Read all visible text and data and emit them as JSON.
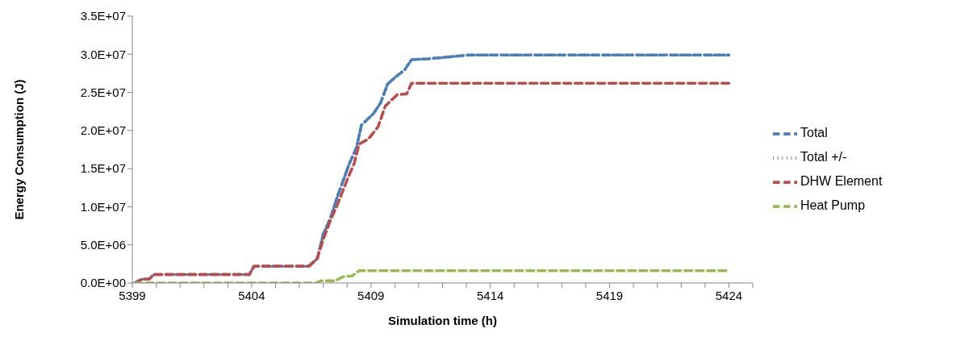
{
  "chart_data": {
    "type": "line",
    "xlabel": "Simulation time (h)",
    "ylabel": "Energy Consumption (J)",
    "xlim": [
      5399,
      5425
    ],
    "xticks": [
      5399,
      {
        "value": 5400,
        "label": null
      },
      {
        "value": 5401,
        "label": null
      },
      {
        "value": 5402,
        "label": null
      },
      {
        "value": 5403,
        "label": null
      },
      5404,
      {
        "value": 5405,
        "label": null
      },
      {
        "value": 5406,
        "label": null
      },
      {
        "value": 5407,
        "label": null
      },
      {
        "value": 5408,
        "label": null
      },
      5409,
      {
        "value": 5410,
        "label": null
      },
      {
        "value": 5411,
        "label": null
      },
      {
        "value": 5412,
        "label": null
      },
      {
        "value": 5413,
        "label": null
      },
      5414,
      {
        "value": 5415,
        "label": null
      },
      {
        "value": 5416,
        "label": null
      },
      {
        "value": 5417,
        "label": null
      },
      {
        "value": 5418,
        "label": null
      },
      5419,
      {
        "value": 5420,
        "label": null
      },
      {
        "value": 5421,
        "label": null
      },
      {
        "value": 5422,
        "label": null
      },
      {
        "value": 5423,
        "label": null
      },
      5424,
      {
        "value": 5425,
        "label": null
      }
    ],
    "ylim": [
      0,
      35000000
    ],
    "yticks": [
      {
        "value": 0,
        "label": "0.0E+00"
      },
      {
        "value": 5000000,
        "label": "5.0E+06"
      },
      {
        "value": 10000000,
        "label": "1.0E+07"
      },
      {
        "value": 15000000,
        "label": "1.5E+07"
      },
      {
        "value": 20000000,
        "label": "2.0E+07"
      },
      {
        "value": 25000000,
        "label": "2.5E+07"
      },
      {
        "value": 30000000,
        "label": "3.0E+07"
      },
      {
        "value": 35000000,
        "label": "3.5E+07"
      }
    ],
    "grid": false,
    "legend": "right",
    "series": [
      {
        "name": "Total",
        "color": "#4a7ebb",
        "line_style": "dashed",
        "x": [
          5399.1,
          5399.4,
          5399.7,
          5399.9,
          5403.9,
          5404.1,
          5406.4,
          5406.75,
          5407.0,
          5407.3,
          5407.6,
          5408.1,
          5408.4,
          5408.6,
          5409.1,
          5409.4,
          5409.7,
          5410.1,
          5410.4,
          5410.7,
          5411.4,
          5413.1,
          5424
        ],
        "values": [
          0,
          500000,
          500000,
          1100000,
          1100000,
          2200000,
          2200000,
          3200000,
          6400000,
          8500000,
          11400000,
          15700000,
          17800000,
          20700000,
          22200000,
          23600000,
          26100000,
          27200000,
          27900000,
          29300000,
          29400000,
          29900000,
          29900000
        ]
      },
      {
        "name": "Total +/-",
        "color": "#4a7ebb",
        "line_style": "dotted",
        "x": [
          5399.1,
          5399.4,
          5399.7,
          5399.9,
          5403.9,
          5404.1,
          5406.4,
          5406.75,
          5407.0,
          5407.3,
          5407.6,
          5408.1,
          5408.4,
          5408.6,
          5409.1,
          5409.4,
          5409.7,
          5410.1,
          5410.4,
          5410.7,
          5411.4,
          5413.1,
          5424
        ],
        "values": [
          0,
          500000,
          500000,
          1100000,
          1100000,
          2200000,
          2200000,
          3200000,
          6400000,
          8500000,
          11400000,
          15700000,
          17800000,
          20700000,
          22200000,
          23600000,
          26100000,
          27200000,
          27900000,
          29300000,
          29400000,
          29900000,
          29900000
        ]
      },
      {
        "name": "DHW Element",
        "color": "#be4b48",
        "line_style": "dashed",
        "x": [
          5399.1,
          5399.4,
          5399.7,
          5399.9,
          5403.9,
          5404.1,
          5406.4,
          5406.75,
          5407.0,
          5407.3,
          5407.6,
          5408.0,
          5408.3,
          5408.5,
          5408.9,
          5409.3,
          5409.6,
          5410.1,
          5410.5,
          5410.7,
          5424
        ],
        "values": [
          0,
          500000,
          500000,
          1100000,
          1100000,
          2200000,
          2200000,
          3200000,
          5700000,
          8200000,
          10300000,
          13500000,
          15700000,
          18200000,
          18900000,
          20500000,
          23200000,
          24700000,
          24800000,
          26200000,
          26200000
        ]
      },
      {
        "name": "Heat Pump",
        "color": "#98b954",
        "line_style": "dashed",
        "x": [
          5399.1,
          5406.7,
          5406.9,
          5407.5,
          5407.9,
          5408.2,
          5408.5,
          5424
        ],
        "values": [
          0,
          0,
          300000,
          300000,
          900000,
          900000,
          1600000,
          1600000
        ]
      }
    ]
  }
}
